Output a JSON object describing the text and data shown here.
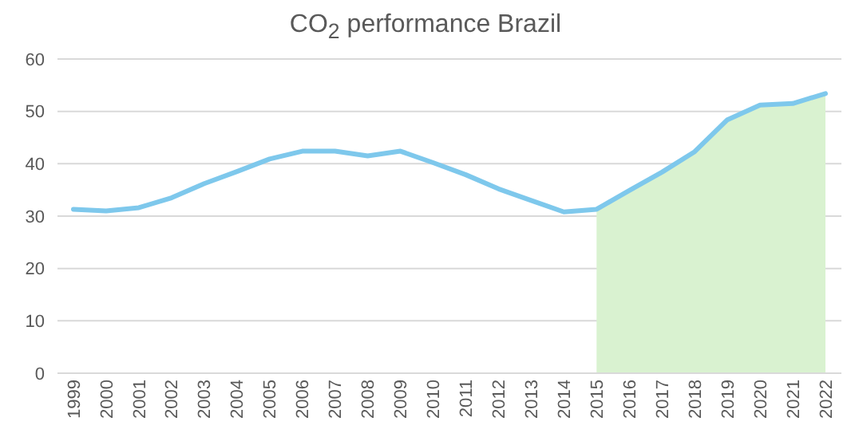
{
  "chart_data": {
    "type": "line",
    "title": "CO$_{2}$ performance Brazil",
    "categories": [
      "1999",
      "2000",
      "2001",
      "2002",
      "2003",
      "2004",
      "2005",
      "2006",
      "2007",
      "2008",
      "2009",
      "2010",
      "2011",
      "2012",
      "2013",
      "2014",
      "2015",
      "2016",
      "2017",
      "2018",
      "2019",
      "2020",
      "2021",
      "2022"
    ],
    "series": [
      {
        "type": "area",
        "color": "#d9f2d0",
        "values": [
          null,
          null,
          null,
          null,
          null,
          null,
          null,
          null,
          null,
          null,
          null,
          null,
          null,
          null,
          null,
          null,
          31.3,
          34.9,
          38.4,
          42.3,
          48.4,
          51.2,
          51.5,
          53.4
        ]
      },
      {
        "color": "#7ec8ec",
        "values": [
          31.3,
          31.0,
          31.6,
          33.5,
          36.2,
          38.5,
          40.9,
          42.4,
          42.4,
          41.5,
          42.4,
          40.2,
          37.9,
          35.2,
          33.0,
          30.8,
          31.3,
          34.9,
          38.4,
          42.3,
          48.4,
          51.2,
          51.5,
          53.4
        ]
      }
    ],
    "ylim": [
      0,
      60
    ],
    "yticks": [
      0,
      10,
      20,
      30,
      40,
      50,
      60
    ],
    "grid": "y",
    "legend": false,
    "marker": "none"
  }
}
